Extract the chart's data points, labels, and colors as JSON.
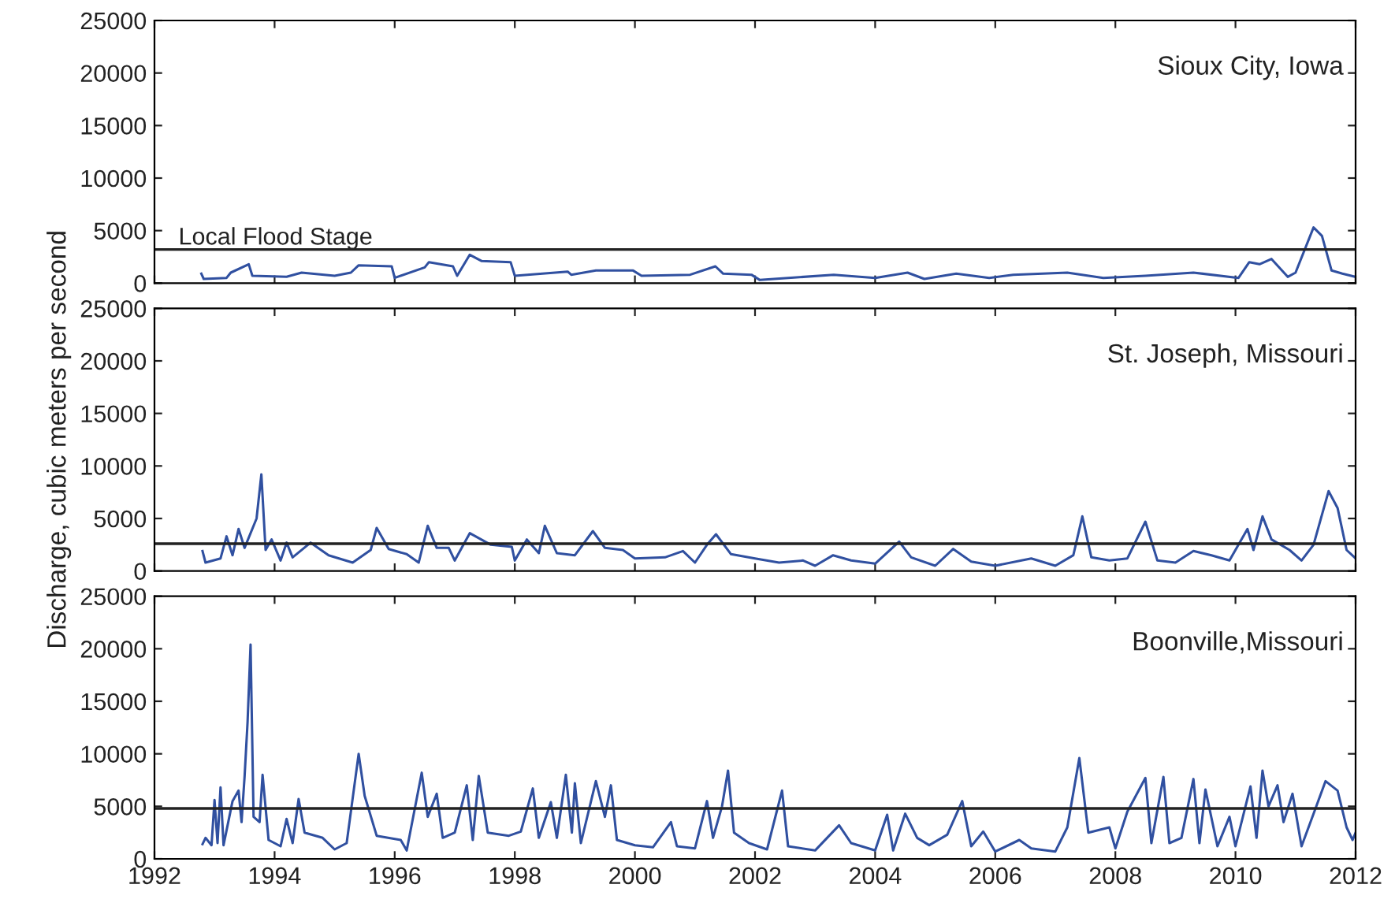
{
  "chart_data": [
    {
      "type": "line",
      "title": "Sioux City, Iowa",
      "tick_labels": "y",
      "grid": false,
      "legend": false,
      "xlim": [
        1992,
        2012
      ],
      "xticks": [
        1992,
        1994,
        1996,
        1998,
        2000,
        2002,
        2004,
        2006,
        2008,
        2010,
        2012
      ],
      "ylim": [
        0,
        25000
      ],
      "yticks": [
        0,
        5000,
        10000,
        15000,
        20000,
        25000
      ],
      "ref_lines": [
        {
          "axis": "y",
          "value": 3200,
          "label": "Local Flood Stage",
          "color": "#222222"
        }
      ],
      "series": [
        {
          "color": "#3050a0",
          "x": [
            1992.78,
            1992.82,
            1993.2,
            1993.27,
            1993.57,
            1993.63,
            1994.2,
            1994.45,
            1995.0,
            1995.27,
            1995.4,
            1995.95,
            1996.0,
            1996.5,
            1996.57,
            1996.97,
            1997.04,
            1997.25,
            1997.45,
            1997.93,
            1998.0,
            1998.88,
            1998.94,
            1999.35,
            1999.97,
            2000.11,
            2000.92,
            2001.34,
            2001.47,
            2001.94,
            2002.08,
            2003.31,
            2004.0,
            2004.54,
            2004.82,
            2005.35,
            2005.9,
            2006.3,
            2007.2,
            2007.8,
            2008.5,
            2009.3,
            2010.05,
            2010.23,
            2010.4,
            2010.6,
            2010.87,
            2011.0,
            2011.3,
            2011.44,
            2011.6,
            2011.78,
            2012.0
          ],
          "values": [
            900,
            400,
            500,
            1000,
            1800,
            700,
            600,
            1000,
            700,
            1000,
            1700,
            1600,
            500,
            1500,
            2000,
            1600,
            700,
            2700,
            2100,
            2000,
            700,
            1100,
            800,
            1200,
            1200,
            700,
            800,
            1600,
            900,
            800,
            300,
            800,
            500,
            1000,
            400,
            900,
            500,
            800,
            1000,
            500,
            700,
            1000,
            500,
            2000,
            1800,
            2300,
            600,
            1000,
            5300,
            4500,
            1200,
            900,
            600
          ]
        }
      ]
    },
    {
      "type": "line",
      "title": "St. Joseph, Missouri",
      "ylabel": "Discharge, cubic meters per second",
      "tick_labels": "y",
      "grid": false,
      "legend": false,
      "xlim": [
        1992,
        2012
      ],
      "xticks": [
        1992,
        1994,
        1996,
        1998,
        2000,
        2002,
        2004,
        2006,
        2008,
        2010,
        2012
      ],
      "ylim": [
        0,
        25000
      ],
      "yticks": [
        0,
        5000,
        10000,
        15000,
        20000,
        25000
      ],
      "ref_lines": [
        {
          "axis": "y",
          "value": 2600,
          "color": "#222222"
        }
      ],
      "series": [
        {
          "color": "#3050a0",
          "x": [
            1992.8,
            1992.85,
            1993.1,
            1993.2,
            1993.3,
            1993.4,
            1993.5,
            1993.7,
            1993.78,
            1993.85,
            1993.95,
            1994.1,
            1994.2,
            1994.3,
            1994.6,
            1994.9,
            1995.3,
            1995.6,
            1995.7,
            1995.9,
            1996.2,
            1996.4,
            1996.55,
            1996.7,
            1996.9,
            1997.0,
            1997.25,
            1997.6,
            1997.95,
            1998.0,
            1998.2,
            1998.4,
            1998.5,
            1998.7,
            1999.0,
            1999.3,
            1999.5,
            1999.8,
            2000.0,
            2000.5,
            2000.8,
            2001.0,
            2001.2,
            2001.35,
            2001.6,
            2002.0,
            2002.4,
            2002.8,
            2003.0,
            2003.3,
            2003.6,
            2004.0,
            2004.4,
            2004.6,
            2005.0,
            2005.3,
            2005.6,
            2006.0,
            2006.6,
            2007.0,
            2007.3,
            2007.45,
            2007.6,
            2007.9,
            2008.2,
            2008.5,
            2008.7,
            2009.0,
            2009.3,
            2009.6,
            2009.9,
            2010.2,
            2010.3,
            2010.45,
            2010.6,
            2010.9,
            2011.1,
            2011.3,
            2011.55,
            2011.7,
            2011.85,
            2012.0
          ],
          "values": [
            1900,
            800,
            1200,
            3300,
            1500,
            4000,
            2200,
            5000,
            9200,
            2000,
            3000,
            1000,
            2700,
            1300,
            2700,
            1500,
            800,
            2000,
            4100,
            2100,
            1600,
            800,
            4300,
            2200,
            2200,
            1000,
            3600,
            2500,
            2300,
            1000,
            3000,
            1700,
            4300,
            1700,
            1500,
            3800,
            2200,
            2000,
            1200,
            1300,
            1900,
            800,
            2500,
            3500,
            1600,
            1200,
            800,
            1000,
            500,
            1500,
            1000,
            700,
            2800,
            1300,
            500,
            2100,
            900,
            500,
            1200,
            500,
            1500,
            5200,
            1300,
            1000,
            1200,
            4700,
            1000,
            800,
            1900,
            1500,
            1000,
            4000,
            2000,
            5200,
            3000,
            2000,
            1000,
            2500,
            7600,
            6000,
            2000,
            1200
          ]
        }
      ]
    },
    {
      "type": "line",
      "title": "Boonville,Missouri",
      "grid": false,
      "legend": false,
      "xlim": [
        1992,
        2012
      ],
      "xticks": [
        1992,
        1994,
        1996,
        1998,
        2000,
        2002,
        2004,
        2006,
        2008,
        2010,
        2012
      ],
      "ylim": [
        0,
        25000
      ],
      "yticks": [
        0,
        5000,
        10000,
        15000,
        20000,
        25000
      ],
      "ref_lines": [
        {
          "axis": "y",
          "value": 4800,
          "color": "#222222"
        }
      ],
      "series": [
        {
          "color": "#3050a0",
          "x": [
            1992.8,
            1992.85,
            1992.95,
            1993.0,
            1993.05,
            1993.1,
            1993.15,
            1993.3,
            1993.4,
            1993.45,
            1993.5,
            1993.55,
            1993.6,
            1993.65,
            1993.75,
            1993.8,
            1993.9,
            1994.1,
            1994.2,
            1994.3,
            1994.4,
            1994.5,
            1994.8,
            1995.0,
            1995.2,
            1995.4,
            1995.5,
            1995.7,
            1996.1,
            1996.2,
            1996.45,
            1996.55,
            1996.7,
            1996.8,
            1997.0,
            1997.2,
            1997.3,
            1997.4,
            1997.55,
            1997.9,
            1998.1,
            1998.3,
            1998.4,
            1998.6,
            1998.7,
            1998.85,
            1998.95,
            1999.0,
            1999.1,
            1999.35,
            1999.5,
            1999.6,
            1999.7,
            2000.0,
            2000.3,
            2000.6,
            2000.7,
            2001.0,
            2001.2,
            2001.3,
            2001.45,
            2001.55,
            2001.65,
            2001.9,
            2002.2,
            2002.45,
            2002.55,
            2003.0,
            2003.4,
            2003.6,
            2004.0,
            2004.2,
            2004.3,
            2004.5,
            2004.7,
            2004.9,
            2005.2,
            2005.45,
            2005.6,
            2005.8,
            2006.0,
            2006.4,
            2006.6,
            2007.0,
            2007.2,
            2007.4,
            2007.55,
            2007.9,
            2008.0,
            2008.2,
            2008.5,
            2008.6,
            2008.8,
            2008.9,
            2009.1,
            2009.3,
            2009.4,
            2009.5,
            2009.7,
            2009.9,
            2010.0,
            2010.25,
            2010.35,
            2010.45,
            2010.55,
            2010.7,
            2010.8,
            2010.95,
            2011.1,
            2011.3,
            2011.5,
            2011.7,
            2011.85,
            2011.95,
            2012.0
          ],
          "values": [
            1400,
            2000,
            1300,
            5600,
            1500,
            6800,
            1300,
            5500,
            6500,
            3500,
            7800,
            13000,
            20400,
            4000,
            3500,
            8000,
            1800,
            1200,
            3800,
            1500,
            5700,
            2500,
            2000,
            900,
            1500,
            10000,
            6000,
            2200,
            1800,
            800,
            8200,
            4000,
            6200,
            2000,
            2500,
            7000,
            1800,
            7900,
            2500,
            2200,
            2600,
            6700,
            2000,
            5400,
            2000,
            8000,
            2500,
            7200,
            1500,
            7400,
            4000,
            7000,
            1800,
            1300,
            1100,
            3500,
            1200,
            1000,
            5500,
            2000,
            5000,
            8400,
            2500,
            1500,
            900,
            6500,
            1200,
            800,
            3200,
            1500,
            800,
            4200,
            800,
            4300,
            2000,
            1300,
            2300,
            5500,
            1200,
            2600,
            700,
            1800,
            1000,
            700,
            3000,
            9600,
            2500,
            3000,
            1000,
            4500,
            7700,
            1500,
            7800,
            1500,
            2000,
            7600,
            1500,
            6600,
            1200,
            4000,
            1200,
            6900,
            2000,
            8400,
            5000,
            7000,
            3500,
            6200,
            1200,
            4300,
            7400,
            6500,
            3000,
            1800,
            2500
          ]
        }
      ]
    }
  ]
}
